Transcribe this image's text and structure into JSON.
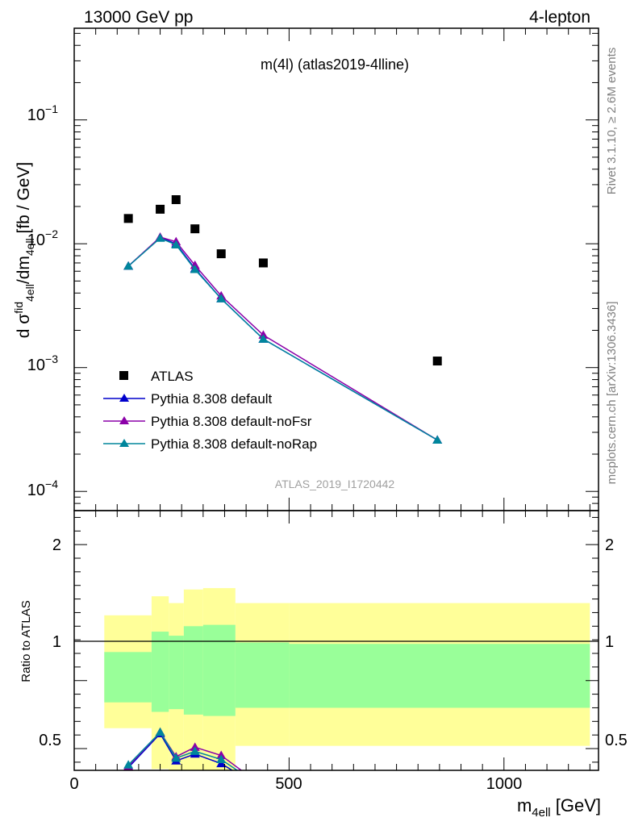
{
  "header": {
    "left": "13000 GeV pp",
    "right": "4-lepton"
  },
  "side_labels": {
    "rivet": "Rivet 3.1.10, ≥ 2.6M events",
    "mcplots": "mcplots.cern.ch [arXiv:1306.3436]"
  },
  "chart_data": {
    "type": "line",
    "title": "m(4l) (atlas2019-4lline)",
    "analysis_label": "ATLAS_2019_I1720442",
    "xlabel": "m_4ell [GeV]",
    "ylabel_main": "d σ^fid_4ell / dm_4ell [fb / GeV]",
    "ylabel_ratio": "Ratio to ATLAS",
    "xlim": [
      0,
      1220
    ],
    "ylim_main": [
      7e-05,
      0.55
    ],
    "yscale_main": "log",
    "ylim_ratio": [
      0.34,
      2.25
    ],
    "x_ticks": [
      "0",
      "500",
      "1000"
    ],
    "y_ticks_main": [
      "10^-1",
      "10^-2",
      "10^-3",
      "10^-4"
    ],
    "y_ticks_ratio": [
      "2",
      "1",
      "0.5"
    ],
    "legend_position": "lower-left",
    "colors": {
      "data": "#000000",
      "default": "#0000cc",
      "noFsr": "#8b00a8",
      "noRap": "#00869c",
      "band_inner": "#99ff99",
      "band_outer": "#ffff99"
    },
    "data": {
      "name": "ATLAS",
      "x": [
        126,
        200,
        237,
        281,
        342,
        440,
        845
      ],
      "y": [
        0.016,
        0.019,
        0.0227,
        0.0132,
        0.0083,
        0.007,
        0.00113
      ]
    },
    "series": [
      {
        "name": "Pythia 8.308 default",
        "x": [
          126,
          200,
          237,
          281,
          342,
          440,
          845
        ],
        "y": [
          0.0066,
          0.0112,
          0.01,
          0.0063,
          0.0036,
          0.0017,
          0.00026
        ],
        "ratio": [
          0.36,
          0.61,
          0.41,
          0.46,
          0.39,
          0.2,
          0.22
        ]
      },
      {
        "name": "Pythia 8.308 default-noFsr",
        "x": [
          126,
          200,
          237,
          281,
          342,
          440,
          845
        ],
        "y": [
          0.0066,
          0.0113,
          0.0104,
          0.0067,
          0.0038,
          0.00183,
          0.00026
        ],
        "ratio": [
          0.37,
          0.62,
          0.44,
          0.51,
          0.45,
          0.22,
          0.23
        ]
      },
      {
        "name": "Pythia 8.308 default-noRap",
        "x": [
          126,
          200,
          237,
          281,
          342,
          440,
          845
        ],
        "y": [
          0.0066,
          0.0111,
          0.0098,
          0.0062,
          0.0036,
          0.0017,
          0.00026
        ],
        "ratio": [
          0.38,
          0.62,
          0.43,
          0.48,
          0.42,
          0.21,
          0.22
        ]
      }
    ],
    "uncertainty_bands": [
      {
        "xlo": 70,
        "xhi": 180,
        "inner": [
          0.84,
          1.21
        ],
        "outer": [
          0.65,
          1.48
        ]
      },
      {
        "xlo": 180,
        "xhi": 220,
        "inner": [
          0.77,
          1.36
        ],
        "outer": [
          0.35,
          1.62
        ]
      },
      {
        "xlo": 220,
        "xhi": 255,
        "inner": [
          0.79,
          1.33
        ],
        "outer": [
          0.33,
          1.57
        ]
      },
      {
        "xlo": 255,
        "xhi": 300,
        "inner": [
          0.75,
          1.4
        ],
        "outer": [
          0.3,
          1.67
        ]
      },
      {
        "xlo": 300,
        "xhi": 375,
        "inner": [
          0.74,
          1.41
        ],
        "outer": [
          0.28,
          1.68
        ]
      },
      {
        "xlo": 375,
        "xhi": 500,
        "inner": [
          0.8,
          1.28
        ],
        "outer": [
          0.52,
          1.57
        ]
      },
      {
        "xlo": 500,
        "xhi": 1200,
        "inner": [
          0.8,
          1.27
        ],
        "outer": [
          0.52,
          1.57
        ]
      }
    ]
  }
}
